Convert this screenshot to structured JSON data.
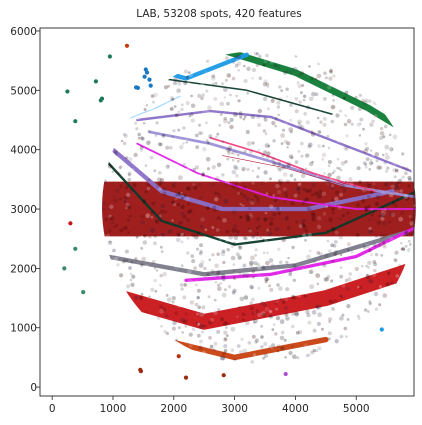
{
  "chart_data": {
    "type": "scatter",
    "title": "LAB, 53208 spots, 420 features",
    "xlabel": "",
    "ylabel": "",
    "xlim": [
      -200,
      5950
    ],
    "ylim": [
      -150,
      6050
    ],
    "x_ticks": [
      0,
      1000,
      2000,
      3000,
      4000,
      5000
    ],
    "y_ticks": [
      0,
      1000,
      2000,
      3000,
      4000,
      5000,
      6000
    ],
    "x_tick_labels": [
      "0",
      "1000",
      "2000",
      "3000",
      "4000",
      "5000"
    ],
    "y_tick_labels": [
      "0",
      "1000",
      "2000",
      "3000",
      "4000",
      "5000",
      "6000"
    ],
    "grid": false,
    "legend": "none",
    "tissue_region": {
      "shape": "disk",
      "center": [
        3400,
        3020
      ],
      "radius": 2580
    },
    "palette": {
      "dark_red": "#9a1212",
      "red": "#c81418",
      "crimson": "#b01030",
      "magenta": "#e020e8",
      "purple": "#8a70c8",
      "lavender": "#9c8fd8",
      "pink": "#f04080",
      "teal_dark": "#0c3a2a",
      "green": "#0f7a34",
      "sky_blue": "#1a9ae8",
      "light_blue": "#9ad8ff",
      "orange_red": "#c84010",
      "grey": "#7a7a8a"
    },
    "outlier_points": [
      {
        "x": 1230,
        "y": 5750,
        "color": "#c83a10"
      },
      {
        "x": 950,
        "y": 5570,
        "color": "#1f7a5a"
      },
      {
        "x": 250,
        "y": 4980,
        "color": "#1f7a5a"
      },
      {
        "x": 720,
        "y": 5150,
        "color": "#1f7a5a"
      },
      {
        "x": 820,
        "y": 4860,
        "color": "#1f7a5a"
      },
      {
        "x": 800,
        "y": 4830,
        "color": "#1f7a5a"
      },
      {
        "x": 1380,
        "y": 5050,
        "color": "#1a78c2"
      },
      {
        "x": 1410,
        "y": 5040,
        "color": "#1a78c2"
      },
      {
        "x": 1540,
        "y": 5350,
        "color": "#1a78c2"
      },
      {
        "x": 1560,
        "y": 5300,
        "color": "#1a78c2"
      },
      {
        "x": 1520,
        "y": 5230,
        "color": "#1a78c2"
      },
      {
        "x": 1600,
        "y": 5180,
        "color": "#1a78c2"
      },
      {
        "x": 1620,
        "y": 5080,
        "color": "#1a78c2"
      },
      {
        "x": 380,
        "y": 4480,
        "color": "#1f7a5a"
      },
      {
        "x": 300,
        "y": 2760,
        "color": "#c81418"
      },
      {
        "x": 380,
        "y": 2330,
        "color": "#3a8a6a"
      },
      {
        "x": 200,
        "y": 2000,
        "color": "#3a8a6a"
      },
      {
        "x": 510,
        "y": 1600,
        "color": "#3a8a6a"
      },
      {
        "x": 5420,
        "y": 970,
        "color": "#1a9ae8"
      },
      {
        "x": 2080,
        "y": 520,
        "color": "#b83010"
      },
      {
        "x": 1450,
        "y": 290,
        "color": "#9a2a10"
      },
      {
        "x": 1460,
        "y": 270,
        "color": "#9a2a10"
      },
      {
        "x": 2200,
        "y": 160,
        "color": "#9a2a10"
      },
      {
        "x": 2820,
        "y": 200,
        "color": "#9a2a10"
      },
      {
        "x": 3840,
        "y": 220,
        "color": "#b050d0"
      }
    ]
  }
}
